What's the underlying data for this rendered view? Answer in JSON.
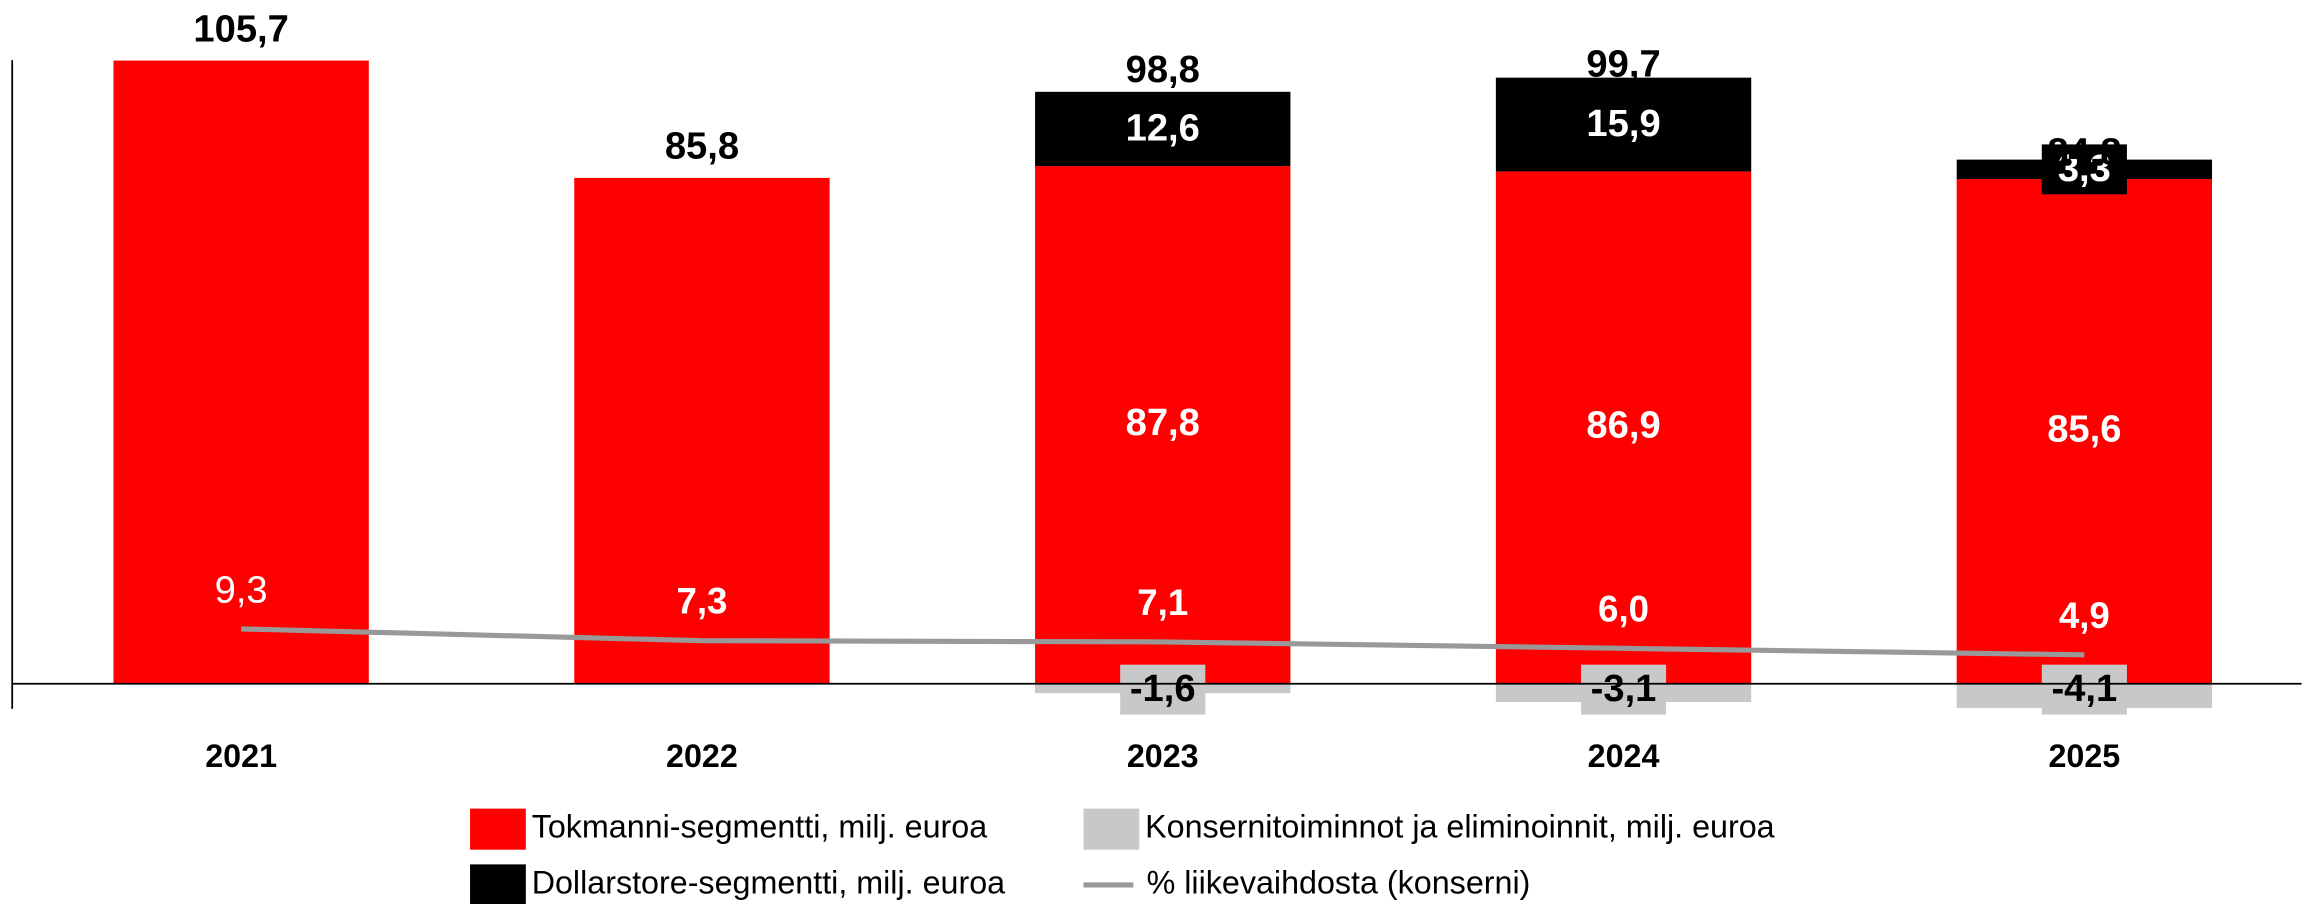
{
  "chart_data": {
    "type": "stacked_bar",
    "categories": [
      "2021",
      "2022",
      "2023",
      "2024",
      "2025"
    ],
    "series": [
      {
        "name": "Tokmanni-segmentti, milj. euroa",
        "color": "#ff0000",
        "values": [
          105.7,
          85.8,
          87.8,
          86.9,
          85.6
        ],
        "value_labels": [
          null,
          null,
          "87,8",
          "86,9",
          "85,6"
        ]
      },
      {
        "name": "Dollarstore-segmentti, milj. euroa",
        "color": "#000000",
        "values": [
          null,
          null,
          12.6,
          15.9,
          3.3
        ],
        "value_labels": [
          null,
          null,
          "12,6",
          "15,9",
          "3,3"
        ]
      },
      {
        "name": "Konsernitoiminnot ja eliminoinnit, milj. euroa",
        "color": "#c8c8c8",
        "values": [
          null,
          null,
          -1.6,
          -3.1,
          -4.1
        ],
        "value_labels": [
          null,
          null,
          "-1,6",
          "-3,1",
          "-4,1"
        ]
      },
      {
        "name": "% liikevaihdosta (konserni)",
        "color": "#999999",
        "type": "line",
        "axis": "y2",
        "values": [
          9.3,
          7.3,
          7.1,
          6.0,
          4.9
        ],
        "value_labels": [
          "9,3",
          "7,3",
          "7,1",
          "6,0",
          "4,9"
        ]
      }
    ],
    "totals": [
      105.7,
      85.8,
      98.8,
      99.7,
      84.8
    ],
    "total_labels": [
      "105,7",
      "85,8",
      "98,8",
      "99,7",
      "84,8"
    ],
    "ylim": [
      -5,
      110
    ],
    "y2lim": [
      -5,
      110
    ],
    "legend": "bottom"
  }
}
